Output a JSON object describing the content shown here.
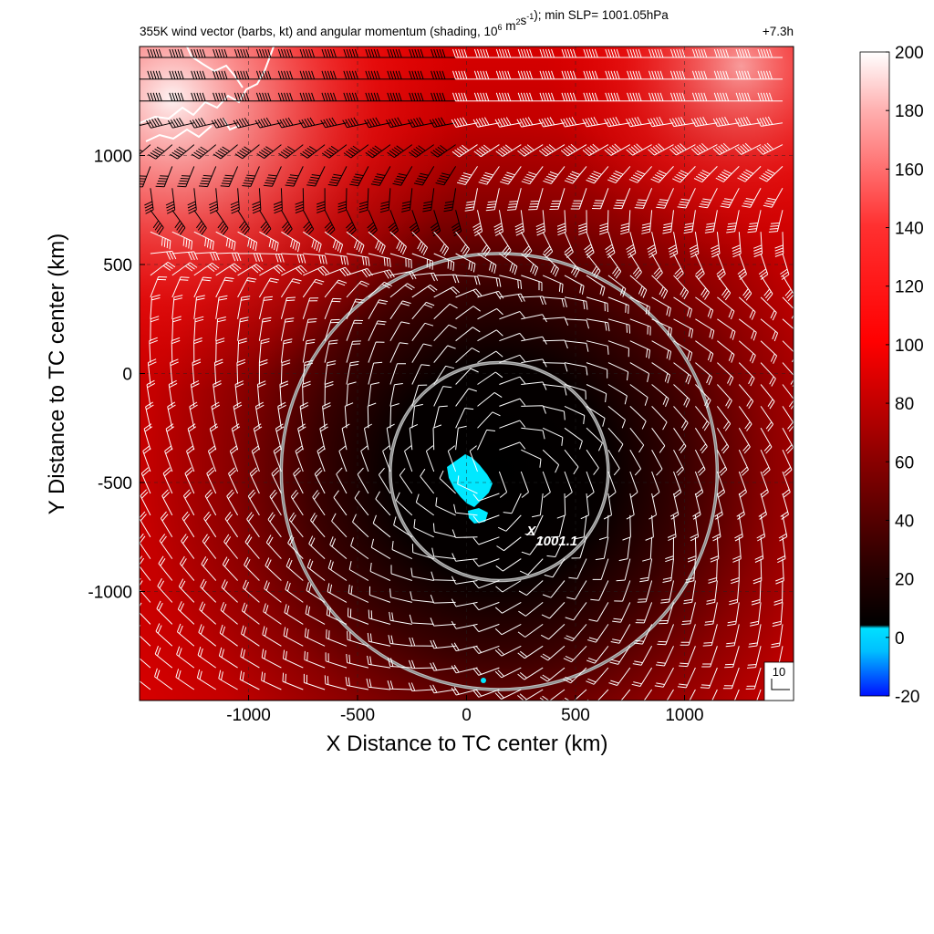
{
  "title": {
    "main": "355K wind vector (barbs, kt) and angular momentum (shading, 10",
    "exp1": "6",
    "mid": " m",
    "exp2": "2",
    "mid2": "s",
    "exp3": "-1",
    "tail": "); min SLP= 1001.05hPa",
    "time": "+7.3h"
  },
  "chart_data": {
    "type": "heatmap",
    "xlabel": "X Distance to TC center (km)",
    "ylabel": "Y Distance to TC center (km)",
    "xlim": [
      -1500,
      1500
    ],
    "ylim": [
      -1500,
      1500
    ],
    "x_ticks": [
      -1000,
      -500,
      0,
      500,
      1000
    ],
    "y_ticks": [
      1000,
      500,
      0,
      -500,
      -1000
    ],
    "x_tick_labels": [
      "-1000",
      "-500",
      "0",
      "500",
      "1000"
    ],
    "y_tick_labels": [
      "1000",
      "500",
      "0",
      "-500",
      "-1000"
    ],
    "grid": "dashed at 500 km intervals",
    "colorbar": {
      "ticks": [
        200,
        180,
        160,
        140,
        120,
        100,
        80,
        60,
        40,
        20,
        0,
        -20
      ],
      "tick_labels": [
        "200",
        "180",
        "160",
        "140",
        "120",
        "100",
        "80",
        "60",
        "40",
        "20",
        "0",
        "-20"
      ],
      "range": [
        -20,
        200
      ],
      "colors": {
        "negative": "#00e5ff",
        "low": "#000000",
        "mid": "#cc0000",
        "high": "#ff1a1a",
        "top": "#ffffff"
      }
    },
    "center_marker": {
      "symbol": "X",
      "x_km": 150,
      "y_km": -450
    },
    "slp_label": "1001.1",
    "range_rings_km": [
      {
        "cx": 150,
        "cy": -450,
        "r": 500
      },
      {
        "cx": 150,
        "cy": -450,
        "r": 1000
      }
    ],
    "reference_barb_label": "10",
    "momentum_field_description_values": {
      "min_near_center": 0,
      "typical_outer": 80,
      "max_northwest": 200
    }
  }
}
